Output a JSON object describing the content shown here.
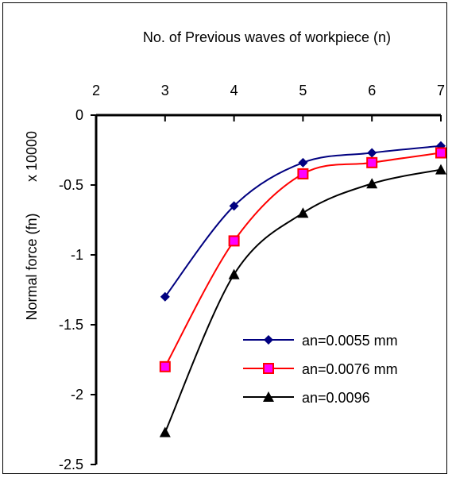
{
  "chart_data": {
    "type": "line",
    "title": "No. of Previous waves of workpiece (n)",
    "ylabel": "Normal force (fn)",
    "y_multiplier_label": "x 10000",
    "x_ticks": [
      "2",
      "3",
      "4",
      "5",
      "6",
      "7"
    ],
    "y_ticks": [
      "0",
      "-0.5",
      "-1",
      "-1.5",
      "-2",
      "-2.5"
    ],
    "xlim": [
      2,
      7
    ],
    "ylim": [
      -2.5,
      0
    ],
    "x_axis_position": "top",
    "grid": false,
    "legend_position": "bottom-right",
    "x": [
      3,
      4,
      5,
      6,
      7
    ],
    "series": [
      {
        "name": "an=0.0055 mm",
        "values": [
          -1.3,
          -0.65,
          -0.34,
          -0.27,
          -0.22
        ],
        "color": "#000080",
        "marker": "diamond"
      },
      {
        "name": "an=0.0076 mm",
        "values": [
          -1.8,
          -0.9,
          -0.42,
          -0.34,
          -0.27
        ],
        "color": "#ff0000",
        "marker": "square",
        "marker_fill": "#ff00ff"
      },
      {
        "name": "an=0.0096",
        "values": [
          -2.27,
          -1.14,
          -0.7,
          -0.49,
          -0.39
        ],
        "color": "#000000",
        "marker": "triangle"
      }
    ]
  }
}
